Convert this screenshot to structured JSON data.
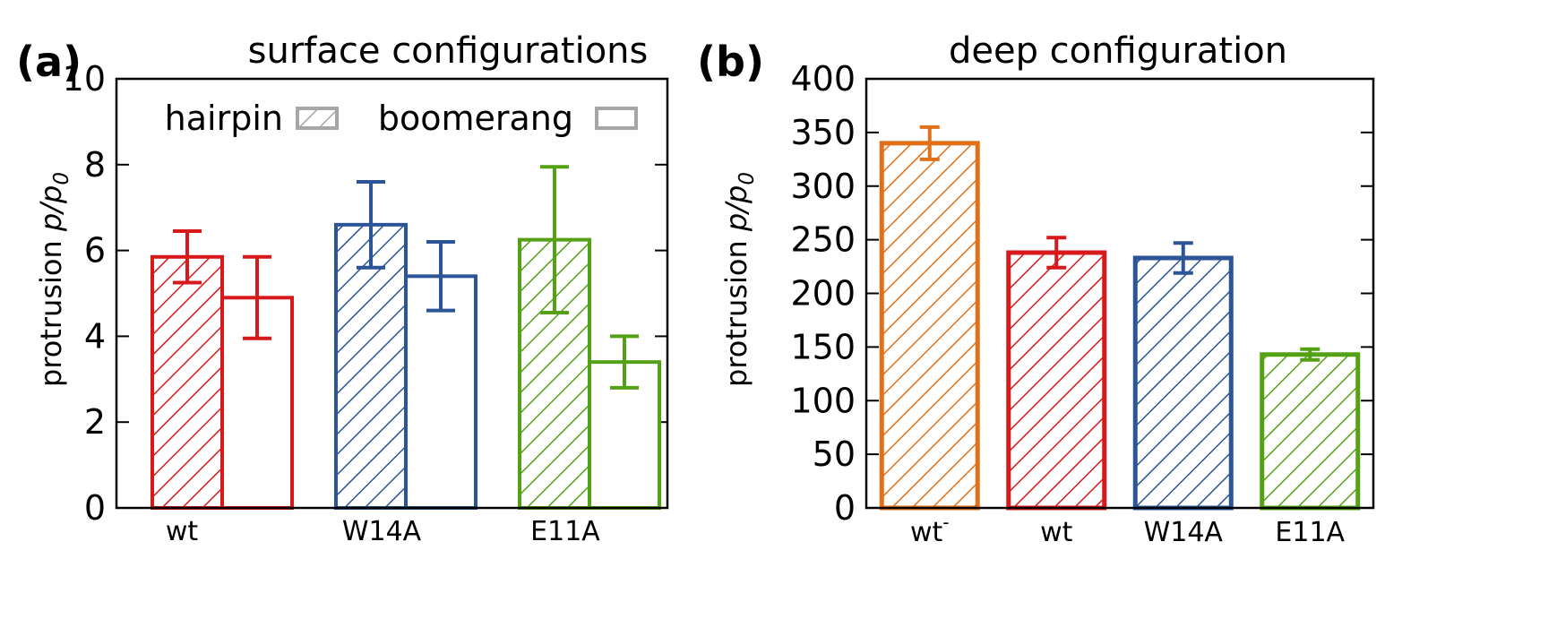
{
  "chart_data": [
    {
      "panel_label": "(a)",
      "type": "bar",
      "title": "surface configurations",
      "ylabel_main": "protrusion ",
      "ylabel_var": "p/p",
      "ylabel_sub": "0",
      "ylim": [
        0,
        10
      ],
      "yticks": [
        "0",
        "2",
        "4",
        "6",
        "8",
        "10"
      ],
      "categories": [
        "wt",
        "W14A",
        "E11A"
      ],
      "colors": [
        "#d7191c",
        "#2b5597",
        "#55a116"
      ],
      "legend": [
        {
          "label": "hairpin",
          "style": "hatched"
        },
        {
          "label": "boomerang",
          "style": "open"
        }
      ],
      "series": [
        {
          "name": "hairpin",
          "values": [
            5.85,
            6.6,
            6.25
          ],
          "errors": [
            0.6,
            1.0,
            1.7
          ]
        },
        {
          "name": "boomerang",
          "values": [
            4.9,
            5.4,
            3.4
          ],
          "errors": [
            0.95,
            0.8,
            0.6
          ]
        }
      ]
    },
    {
      "panel_label": "(b)",
      "type": "bar",
      "title": "deep configuration",
      "ylabel_main": "protrusion ",
      "ylabel_var": "p/p",
      "ylabel_sub": "0",
      "ylim": [
        0,
        400
      ],
      "yticks": [
        "0",
        "50",
        "100",
        "150",
        "200",
        "250",
        "300",
        "350",
        "400"
      ],
      "categories": [
        {
          "base": "wt",
          "sup": "-"
        },
        {
          "base": "wt",
          "sup": ""
        },
        {
          "base": "W14A",
          "sup": ""
        },
        {
          "base": "E11A",
          "sup": ""
        }
      ],
      "colors": [
        "#e0711a",
        "#d7191c",
        "#2b5597",
        "#55a116"
      ],
      "values": [
        340,
        238,
        233,
        143
      ],
      "errors": [
        15,
        14,
        14,
        5
      ]
    }
  ]
}
